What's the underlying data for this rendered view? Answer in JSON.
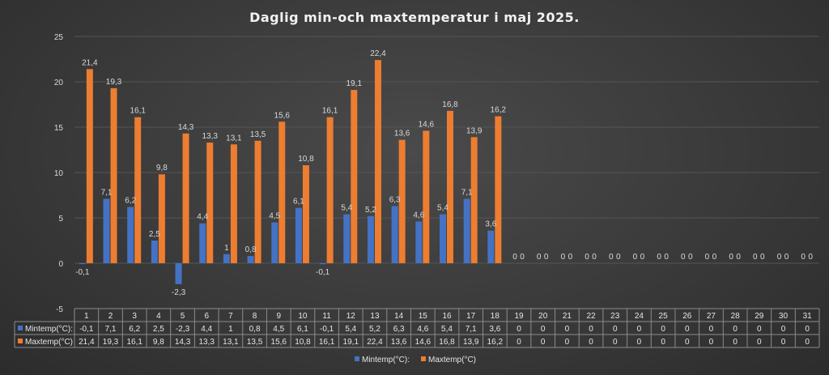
{
  "chart_data": {
    "type": "bar",
    "title": "Daglig min-och maxtemperatur i maj 2025.",
    "categories": [
      "1",
      "2",
      "3",
      "4",
      "5",
      "6",
      "7",
      "8",
      "9",
      "10",
      "11",
      "12",
      "13",
      "14",
      "15",
      "16",
      "17",
      "18",
      "19",
      "20",
      "21",
      "22",
      "23",
      "24",
      "25",
      "26",
      "27",
      "28",
      "29",
      "30",
      "31"
    ],
    "ylim": [
      -5,
      25
    ],
    "yticks": [
      -5,
      0,
      5,
      10,
      15,
      20,
      25
    ],
    "series": [
      {
        "name": "Mintemp(°C):",
        "color": "#4472c4",
        "values": [
          -0.1,
          7.1,
          6.2,
          2.5,
          -2.3,
          4.4,
          1,
          0.8,
          4.5,
          6.1,
          -0.1,
          5.4,
          5.2,
          6.3,
          4.6,
          5.4,
          7.1,
          3.6,
          0,
          0,
          0,
          0,
          0,
          0,
          0,
          0,
          0,
          0,
          0,
          0,
          0
        ],
        "labels": [
          "-0,1",
          "7,1",
          "6,2",
          "2,5",
          "-2,3",
          "4,4",
          "1",
          "0,8",
          "4,5",
          "6,1",
          "-0,1",
          "5,4",
          "5,2",
          "6,3",
          "4,6",
          "5,4",
          "7,1",
          "3,6",
          "0",
          "0",
          "0",
          "0",
          "0",
          "0",
          "0",
          "0",
          "0",
          "0",
          "0",
          "0",
          "0"
        ]
      },
      {
        "name": "Maxtemp(°C)",
        "color": "#ed7d31",
        "values": [
          21.4,
          19.3,
          16.1,
          9.8,
          14.3,
          13.3,
          13.1,
          13.5,
          15.6,
          10.8,
          16.1,
          19.1,
          22.4,
          13.6,
          14.6,
          16.8,
          13.9,
          16.2,
          0,
          0,
          0,
          0,
          0,
          0,
          0,
          0,
          0,
          0,
          0,
          0,
          0
        ],
        "labels": [
          "21,4",
          "19,3",
          "16,1",
          "9,8",
          "14,3",
          "13,3",
          "13,1",
          "13,5",
          "15,6",
          "10,8",
          "16,1",
          "19,1",
          "22,4",
          "13,6",
          "14,6",
          "16,8",
          "13,9",
          "16,2",
          "0",
          "0",
          "0",
          "0",
          "0",
          "0",
          "0",
          "0",
          "0",
          "0",
          "0",
          "0",
          "0"
        ]
      }
    ],
    "legend": [
      "Mintemp(°C):",
      "Maxtemp(°C)"
    ],
    "legend_position": "bottom",
    "data_table": true,
    "grid": true
  }
}
